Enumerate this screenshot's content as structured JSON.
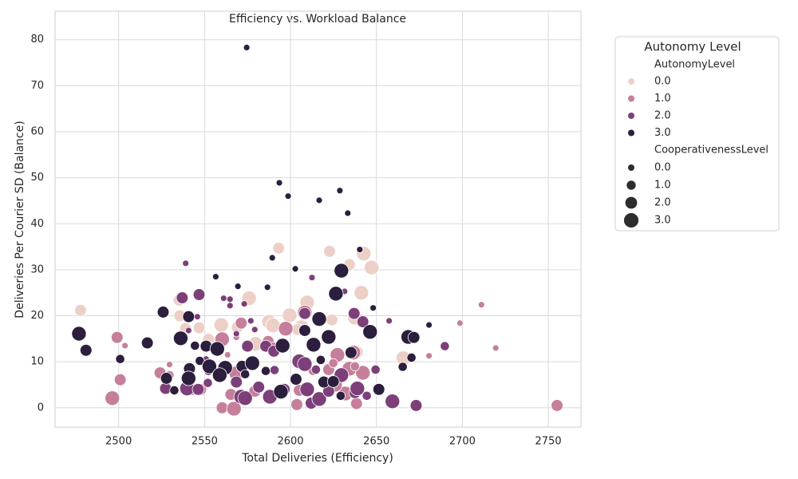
{
  "chart_data": {
    "type": "scatter",
    "title": "Efficiency vs. Workload Balance",
    "xlabel": "Total Deliveries (Efficiency)",
    "ylabel": "Deliveries Per Courier SD (Balance)",
    "xlim": [
      2463,
      2769
    ],
    "ylim": [
      -4.2,
      86.2
    ],
    "xticks": [
      2500,
      2550,
      2600,
      2650,
      2700,
      2750
    ],
    "yticks": [
      0,
      10,
      20,
      30,
      40,
      50,
      60,
      70,
      80
    ],
    "grid": true,
    "legend_position": "outside right",
    "legend_title": "Autonomy Level",
    "hue_title": "AutonomyLevel",
    "size_legend": {
      "title": "CooperativenessLevel",
      "levels": [
        {
          "value": 0,
          "label": "0.0"
        },
        {
          "value": 1,
          "label": "1.0"
        },
        {
          "value": 2,
          "label": "2.0"
        },
        {
          "value": 3,
          "label": "3.0"
        }
      ]
    },
    "series": [
      {
        "name": "0.0",
        "color": "#ecd0c8",
        "x": [
          2477.8,
          2593.1,
          2622.7,
          2642.6,
          2634.3,
          2647.2,
          2641.2,
          2575.9,
          2609.7,
          2535.2,
          2535.6,
          2538.9,
          2546.8,
          2559.7,
          2569.0,
          2587.5,
          2589.8,
          2599.5,
          2606.5,
          2624.1,
          2637.5,
          2579.6,
          2638.9,
          2665.7,
          2552.3,
          2604.2
        ],
        "y": [
          21.2,
          34.7,
          34.0,
          33.5,
          31.1,
          30.5,
          25.0,
          23.8,
          22.9,
          23.4,
          20.0,
          17.2,
          17.4,
          18.0,
          17.5,
          18.7,
          17.9,
          20.1,
          17.5,
          19.1,
          19.6,
          13.9,
          12.1,
          10.8,
          14.9,
          17.0
        ],
        "sizes": [
          2,
          2,
          2,
          3,
          2,
          3,
          3,
          3,
          3,
          2,
          2,
          2,
          2,
          3,
          2,
          3,
          3,
          3,
          3,
          2,
          3,
          3,
          2,
          3,
          2,
          2
        ]
      },
      {
        "name": "1.0",
        "color": "#c67f9b",
        "x": [
          2711.1,
          2698.6,
          2719.4,
          2680.6,
          2755.1,
          2496.3,
          2500.9,
          2499.1,
          2503.7,
          2529.6,
          2524.1,
          2529.6,
          2542.6,
          2547.7,
          2560.2,
          2567.1,
          2565.3,
          2579.2,
          2571.3,
          2560.2,
          2563.4,
          2568.5,
          2587.0,
          2589.8,
          2597.2,
          2608.3,
          2613.0,
          2622.2,
          2627.3,
          2631.9,
          2625.9,
          2634.3,
          2638.4,
          2642.1,
          2636.6,
          2603.7,
          2605.1,
          2624.9,
          2629.2,
          2568.5,
          2637.5
        ],
        "y": [
          22.4,
          18.4,
          13.0,
          11.3,
          0.5,
          2.1,
          6.1,
          15.3,
          13.5,
          9.4,
          7.6,
          7.1,
          4.0,
          4.0,
          0.0,
          -0.2,
          2.9,
          3.6,
          18.4,
          14.9,
          11.5,
          15.3,
          14.4,
          13.0,
          17.2,
          20.7,
          8.0,
          8.3,
          11.5,
          3.1,
          5.0,
          8.5,
          0.9,
          7.6,
          12.0,
          0.7,
          3.8,
          9.7,
          24.5,
          7.5,
          9.0
        ],
        "sizes": [
          0,
          0,
          0,
          0,
          2,
          3,
          2,
          2,
          0,
          0,
          2,
          1,
          2,
          2,
          2,
          3,
          2,
          2,
          2,
          3,
          0,
          0,
          2,
          2,
          3,
          3,
          1,
          2,
          3,
          3,
          3,
          3,
          2,
          3,
          3,
          2,
          2,
          1,
          0,
          3,
          1
        ]
      },
      {
        "name": "2.0",
        "color": "#7d3f79",
        "x": [
          2539.0,
          2612.5,
          2631.5,
          2546.8,
          2537.0,
          2561.1,
          2564.8,
          2564.8,
          2573.1,
          2576.9,
          2579.2,
          2545.8,
          2637.0,
          2642.1,
          2657.4,
          2608.3,
          2540.7,
          2568.5,
          2575.0,
          2585.6,
          2590.3,
          2605.1,
          2608.3,
          2614.8,
          2590.7,
          2649.5,
          2689.8,
          2550.9,
          2552.3,
          2551.9,
          2527.3,
          2539.8,
          2546.3,
          2568.5,
          2581.5,
          2588.0,
          2596.3,
          2609.7,
          2612.0,
          2616.7,
          2622.2,
          2629.6,
          2637.5,
          2638.9,
          2644.4,
          2571.3,
          2573.6,
          2659.3,
          2673.1
        ],
        "y": [
          31.4,
          28.3,
          25.3,
          24.6,
          23.9,
          23.8,
          23.6,
          22.2,
          22.6,
          18.9,
          17.0,
          19.8,
          20.5,
          18.7,
          18.9,
          20.5,
          16.8,
          16.1,
          13.4,
          13.4,
          12.3,
          10.1,
          9.5,
          8.3,
          8.2,
          8.3,
          13.4,
          10.6,
          8.0,
          5.4,
          4.2,
          4.2,
          4.0,
          5.6,
          4.5,
          2.4,
          4.0,
          4.0,
          1.0,
          1.9,
          3.6,
          7.1,
          3.3,
          4.2,
          2.6,
          2.4,
          2.1,
          1.4,
          0.5
        ],
        "sizes": [
          0,
          0,
          0,
          2,
          2,
          0,
          0,
          0,
          0,
          0,
          0,
          0,
          2,
          2,
          0,
          2,
          0,
          0,
          2,
          2,
          2,
          3,
          3,
          1,
          1,
          1,
          1,
          0,
          1,
          1,
          2,
          3,
          2,
          2,
          2,
          3,
          2,
          3,
          2,
          3,
          2,
          3,
          2,
          3,
          1,
          3,
          3,
          3,
          2
        ]
      },
      {
        "name": "3.0",
        "color": "#2c1e3d",
        "x": [
          2574.5,
          2593.5,
          2598.6,
          2628.7,
          2616.7,
          2633.3,
          2589.4,
          2556.5,
          2569.4,
          2586.6,
          2602.8,
          2629.6,
          2640.3,
          2648.1,
          2626.4,
          2525.9,
          2476.9,
          2481.0,
          2516.7,
          2500.9,
          2540.7,
          2536.1,
          2544.4,
          2550.9,
          2557.4,
          2547.2,
          2552.8,
          2562.0,
          2558.8,
          2541.2,
          2527.8,
          2540.7,
          2532.4,
          2571.8,
          2577.8,
          2573.6,
          2585.6,
          2595.4,
          2608.3,
          2613.4,
          2616.7,
          2622.2,
          2617.6,
          2603.2,
          2619.4,
          2624.9,
          2629.2,
          2635.2,
          2646.3,
          2651.4,
          2665.3,
          2668.5,
          2671.8,
          2670.4,
          2680.6,
          2594.4
        ],
        "y": [
          78.3,
          48.9,
          46.0,
          47.2,
          45.1,
          42.3,
          32.6,
          28.5,
          26.4,
          26.2,
          30.2,
          29.8,
          34.4,
          21.7,
          24.8,
          20.8,
          16.1,
          12.5,
          14.1,
          10.6,
          19.8,
          15.1,
          13.5,
          13.4,
          12.8,
          10.2,
          9.0,
          8.7,
          7.1,
          8.5,
          6.4,
          6.4,
          3.8,
          9.0,
          9.7,
          7.3,
          8.0,
          13.5,
          16.8,
          13.7,
          19.3,
          15.4,
          10.4,
          6.2,
          5.6,
          5.7,
          2.6,
          12.0,
          16.5,
          4.0,
          8.9,
          15.4,
          15.3,
          10.9,
          18.0,
          3.5
        ],
        "sizes": [
          0,
          0,
          0,
          0,
          0,
          0,
          0,
          0,
          0,
          0,
          0,
          3,
          0,
          0,
          3,
          2,
          3,
          2,
          2,
          1,
          2,
          3,
          1,
          2,
          3,
          1,
          3,
          3,
          3,
          2,
          2,
          3,
          1,
          2,
          3,
          1,
          1,
          3,
          2,
          3,
          3,
          3,
          1,
          2,
          2,
          2,
          1,
          2,
          3,
          2,
          1,
          3,
          2,
          1,
          0,
          3
        ]
      }
    ]
  }
}
